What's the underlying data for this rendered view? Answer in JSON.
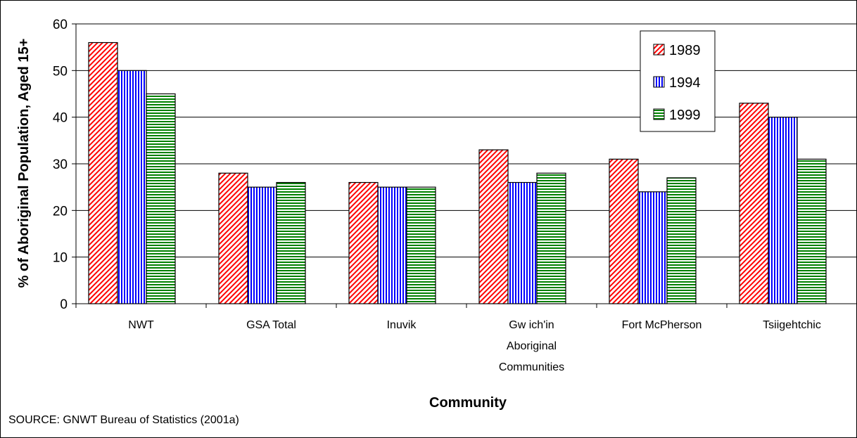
{
  "chart_data": {
    "type": "bar",
    "ylabel": "% of Aboriginal Population, Aged 15+",
    "xlabel": "Community",
    "source": "SOURCE:  GNWT Bureau of Statistics (2001a)",
    "ylim": [
      0,
      60
    ],
    "yticks": [
      0,
      10,
      20,
      30,
      40,
      50,
      60
    ],
    "grid": true,
    "legend_position": "top-right",
    "categories": [
      [
        "NWT"
      ],
      [
        "GSA Total"
      ],
      [
        "Inuvik"
      ],
      [
        "Gw ich'in",
        "Aboriginal",
        "Communities"
      ],
      [
        "Fort McPherson"
      ],
      [
        "Tsiigehtchic"
      ]
    ],
    "series": [
      {
        "name": "1989",
        "color": "#ff0000",
        "pattern": "diagonal",
        "values": [
          56,
          28,
          26,
          33,
          31,
          43
        ]
      },
      {
        "name": "1994",
        "color": "#0000ff",
        "pattern": "vertical",
        "values": [
          50,
          25,
          25,
          26,
          24,
          40
        ]
      },
      {
        "name": "1999",
        "color": "#008000",
        "pattern": "horizontal",
        "values": [
          45,
          26,
          25,
          28,
          27,
          31
        ]
      }
    ]
  }
}
